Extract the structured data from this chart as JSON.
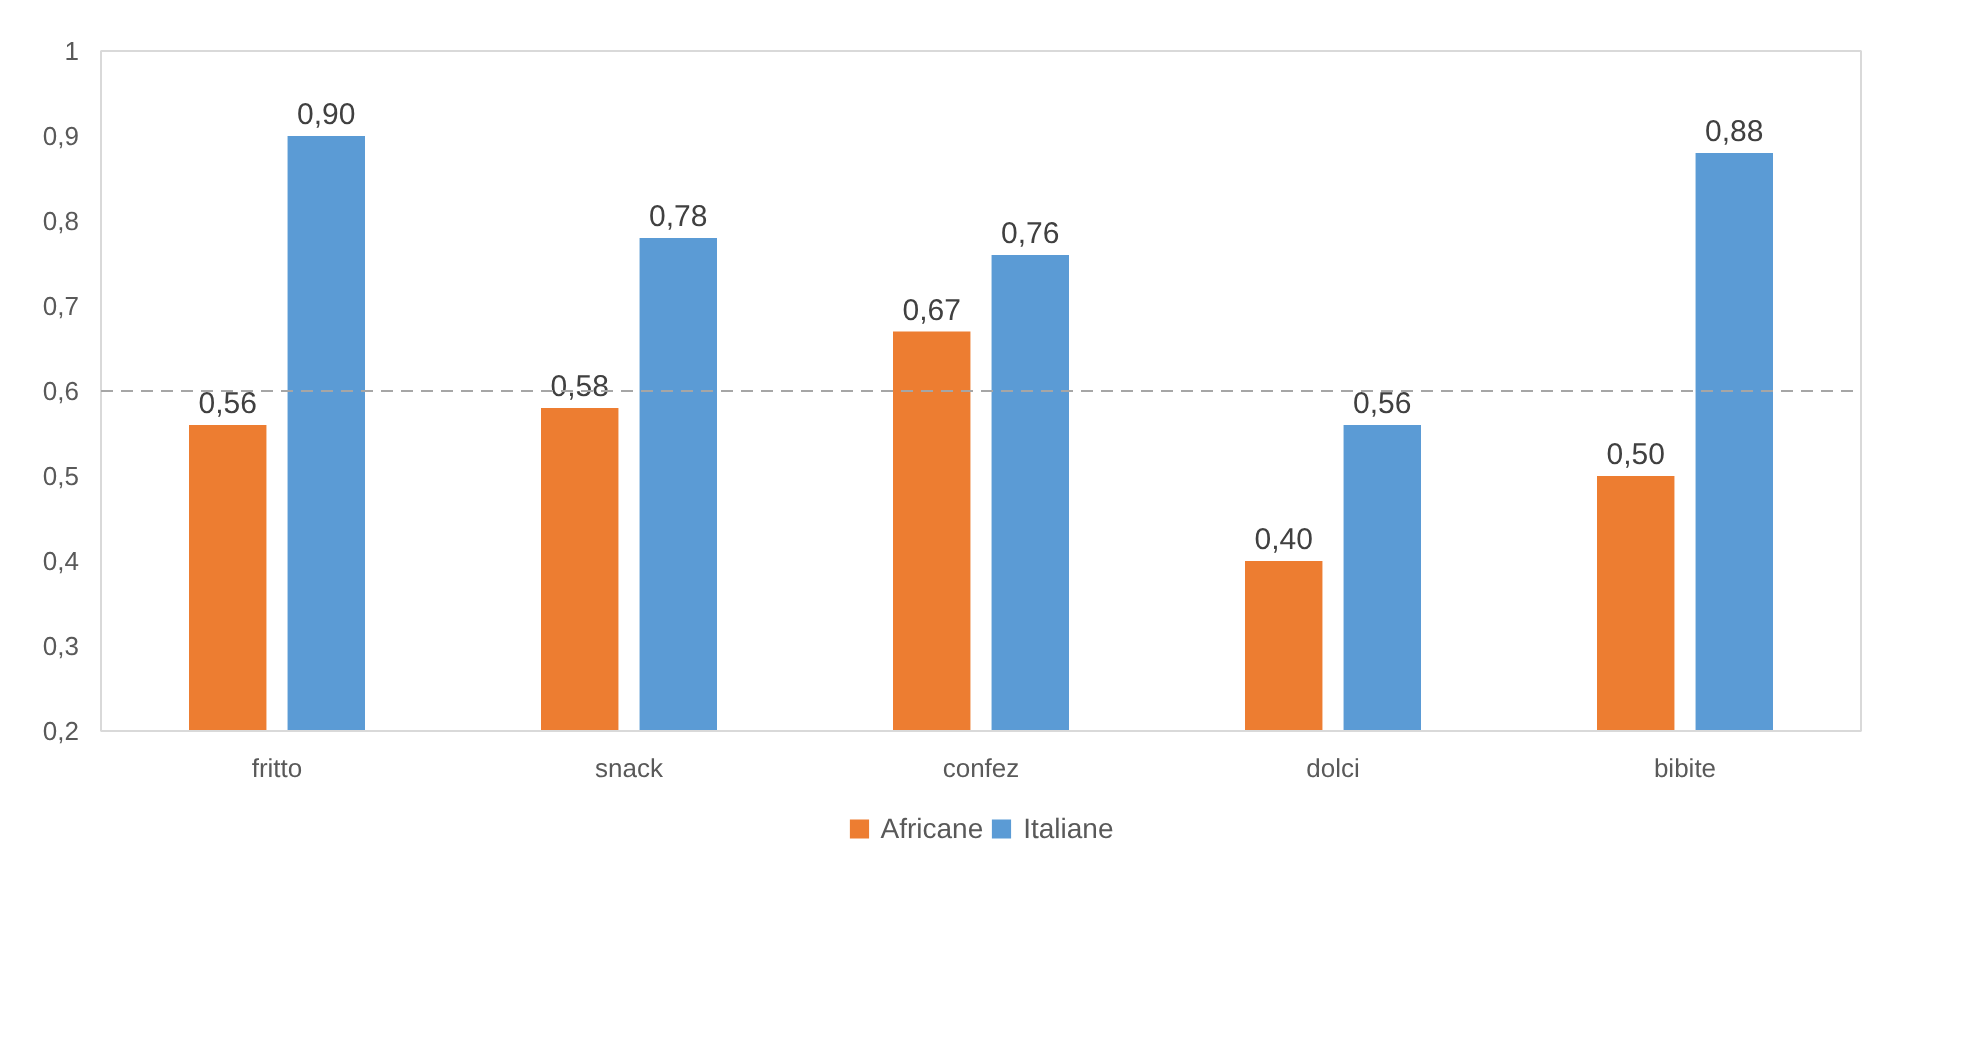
{
  "chart_data": {
    "type": "bar",
    "categories": [
      "fritto",
      "snack",
      "confez",
      "dolci",
      "bibite"
    ],
    "series": [
      {
        "name": "Africane",
        "color": "#ed7d31",
        "values": [
          0.56,
          0.58,
          0.67,
          0.4,
          0.5
        ],
        "value_labels": [
          "0,56",
          "0,58",
          "0,67",
          "0,40",
          "0,50"
        ]
      },
      {
        "name": "Italiane",
        "color": "#5b9bd5",
        "values": [
          0.9,
          0.78,
          0.76,
          0.56,
          0.88
        ],
        "value_labels": [
          "0,90",
          "0,78",
          "0,76",
          "0,56",
          "0,88"
        ]
      }
    ],
    "ylim": [
      0.2,
      1
    ],
    "yticks": [
      {
        "value": 0.2,
        "label": "0,2"
      },
      {
        "value": 0.3,
        "label": "0,3"
      },
      {
        "value": 0.4,
        "label": "0,4"
      },
      {
        "value": 0.5,
        "label": "0,5"
      },
      {
        "value": 0.6,
        "label": "0,6"
      },
      {
        "value": 0.7,
        "label": "0,7"
      },
      {
        "value": 0.8,
        "label": "0,8"
      },
      {
        "value": 0.9,
        "label": "0,9"
      },
      1
    ],
    "ref_lines": [
      {
        "axis": "y",
        "value": 0.6,
        "color": "#a6a6a6",
        "line_style": "dashed"
      }
    ],
    "grid": false,
    "legend": "bottom"
  }
}
